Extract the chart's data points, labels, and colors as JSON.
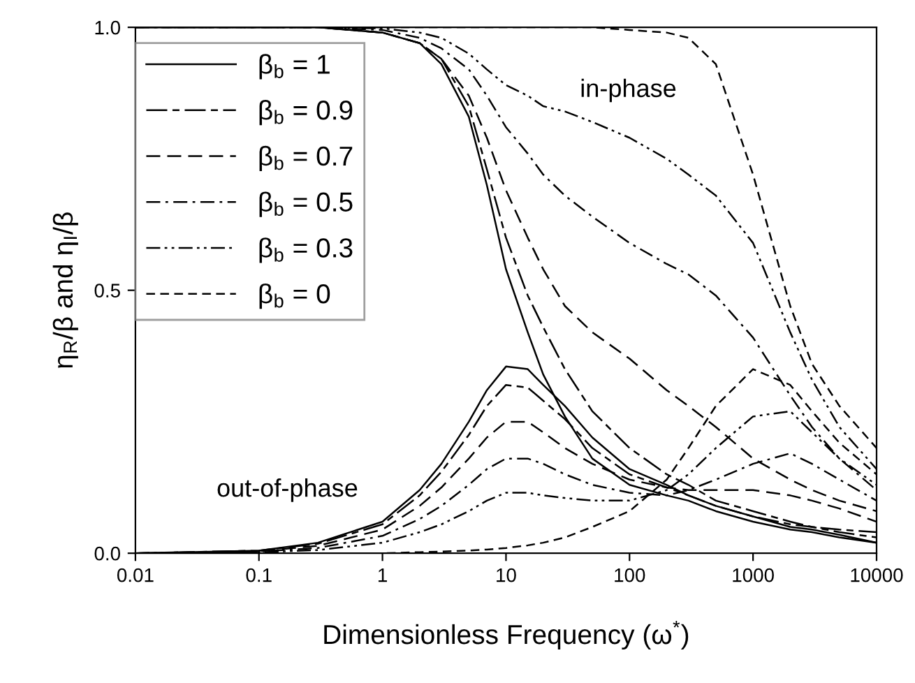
{
  "chart_data": {
    "type": "line",
    "xlabel": "Dimensionless Frequency (ω$^{*}$)",
    "ylabel": "η$_{R}$/β and η$_{I}$/β",
    "log": "x",
    "xlim": [
      0.01,
      10000
    ],
    "ylim": [
      0,
      1
    ],
    "xticks": [
      0.01,
      0.1,
      1,
      10,
      100,
      1000,
      10000
    ],
    "yticks": [
      {
        "value": 0,
        "label": "0.0"
      },
      {
        "value": 0.5,
        "label": "0.5"
      },
      {
        "value": 1,
        "label": "1.0"
      }
    ],
    "grid": false,
    "legend": "top left",
    "marker": "none",
    "x": [
      0.01,
      0.1,
      0.3,
      1,
      2,
      3,
      5,
      7,
      10,
      15,
      20,
      30,
      50,
      100,
      200,
      300,
      500,
      1000,
      2000,
      3000,
      5000,
      10000
    ],
    "annotations": [
      "in-phase",
      "out-of-phase"
    ],
    "series": [
      {
        "name": "β$_{b}$ = 1",
        "color": "#000000",
        "line_style": "solid",
        "values": [
          1,
          1,
          1,
          0.99,
          0.97,
          0.93,
          0.83,
          0.7,
          0.54,
          0.42,
          0.34,
          0.26,
          0.18,
          0.13,
          0.11,
          0.1,
          0.08,
          0.06,
          0.045,
          0.04,
          0.03,
          0.02
        ]
      },
      {
        "name": "β$_{b}$ = 0.9",
        "color": "#000000",
        "line_style": "longdash",
        "values": [
          1,
          1,
          1,
          0.99,
          0.97,
          0.94,
          0.85,
          0.73,
          0.6,
          0.49,
          0.43,
          0.35,
          0.27,
          0.2,
          0.15,
          0.13,
          0.1,
          0.08,
          0.06,
          0.05,
          0.045,
          0.04
        ]
      },
      {
        "name": "β$_{b}$ = 0.7",
        "color": "#000000",
        "line_style": "dashed",
        "values": [
          1,
          1,
          1,
          0.99,
          0.97,
          0.94,
          0.87,
          0.79,
          0.69,
          0.6,
          0.54,
          0.47,
          0.42,
          0.37,
          0.31,
          0.28,
          0.24,
          0.18,
          0.14,
          0.12,
          0.1,
          0.08
        ]
      },
      {
        "name": "β$_{b}$ = 0.5",
        "color": "#000000",
        "line_style": "dashdot",
        "values": [
          1,
          1,
          1,
          0.995,
          0.98,
          0.96,
          0.92,
          0.87,
          0.81,
          0.76,
          0.72,
          0.68,
          0.64,
          0.59,
          0.55,
          0.53,
          0.49,
          0.41,
          0.3,
          0.24,
          0.18,
          0.12
        ]
      },
      {
        "name": "β$_{b}$ = 0.3",
        "color": "#000000",
        "line_style": "dashdotdot",
        "values": [
          1,
          1,
          1,
          0.998,
          0.99,
          0.98,
          0.95,
          0.92,
          0.89,
          0.87,
          0.85,
          0.84,
          0.82,
          0.79,
          0.75,
          0.72,
          0.68,
          0.59,
          0.42,
          0.33,
          0.24,
          0.16
        ]
      },
      {
        "name": "β$_{b}$ = 0",
        "color": "#000000",
        "line_style": "shortdash",
        "values": [
          1,
          1,
          1,
          1,
          1,
          1,
          1,
          1,
          1,
          1,
          1,
          1,
          1,
          0.995,
          0.99,
          0.98,
          0.93,
          0.72,
          0.47,
          0.36,
          0.28,
          0.2
        ]
      },
      {
        "color": "#000000",
        "line_style": "solid",
        "values": [
          0,
          0.005,
          0.02,
          0.06,
          0.12,
          0.17,
          0.25,
          0.31,
          0.355,
          0.35,
          0.32,
          0.28,
          0.22,
          0.16,
          0.13,
          0.11,
          0.09,
          0.07,
          0.05,
          0.045,
          0.035,
          0.02
        ]
      },
      {
        "color": "#000000",
        "line_style": "longdash",
        "values": [
          0,
          0.005,
          0.018,
          0.055,
          0.11,
          0.155,
          0.225,
          0.28,
          0.32,
          0.315,
          0.29,
          0.255,
          0.2,
          0.15,
          0.125,
          0.11,
          0.09,
          0.07,
          0.055,
          0.05,
          0.04,
          0.03
        ]
      },
      {
        "color": "#000000",
        "line_style": "dashed",
        "values": [
          0,
          0.004,
          0.014,
          0.045,
          0.09,
          0.125,
          0.18,
          0.22,
          0.25,
          0.25,
          0.23,
          0.2,
          0.17,
          0.14,
          0.125,
          0.12,
          0.12,
          0.12,
          0.11,
          0.1,
          0.085,
          0.06
        ]
      },
      {
        "color": "#000000",
        "line_style": "dashdot",
        "values": [
          0,
          0.003,
          0.01,
          0.033,
          0.065,
          0.09,
          0.13,
          0.16,
          0.18,
          0.18,
          0.17,
          0.15,
          0.13,
          0.115,
          0.11,
          0.12,
          0.14,
          0.17,
          0.19,
          0.17,
          0.14,
          0.1
        ]
      },
      {
        "color": "#000000",
        "line_style": "dashdotdot",
        "values": [
          0,
          0.002,
          0.006,
          0.02,
          0.04,
          0.055,
          0.08,
          0.1,
          0.115,
          0.115,
          0.11,
          0.105,
          0.1,
          0.1,
          0.12,
          0.15,
          0.2,
          0.26,
          0.27,
          0.23,
          0.18,
          0.13
        ]
      },
      {
        "color": "#000000",
        "line_style": "shortdash",
        "values": [
          0,
          0,
          0,
          0,
          0.002,
          0.003,
          0.005,
          0.007,
          0.01,
          0.015,
          0.02,
          0.03,
          0.05,
          0.08,
          0.14,
          0.2,
          0.28,
          0.35,
          0.32,
          0.27,
          0.21,
          0.15
        ]
      }
    ]
  }
}
